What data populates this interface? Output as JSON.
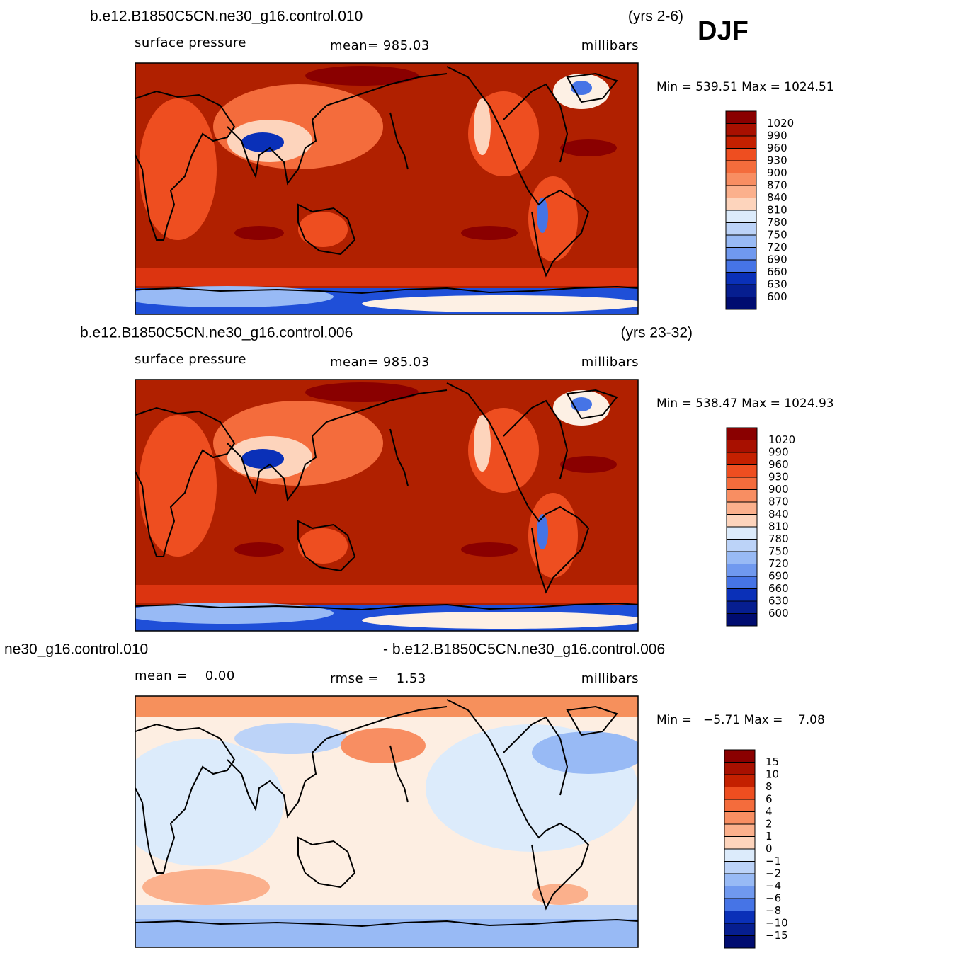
{
  "season": "DJF",
  "panels": [
    {
      "title_left": "b.e12.B1850C5CN.ne30_g16.control.010",
      "title_right": "(yrs 2-6)",
      "subtitle_left": "surface pressure",
      "subtitle_center": "mean= 985.03",
      "subtitle_right": "millibars",
      "minmax": "Min = 539.51 Max = 1024.51",
      "colorbar": {
        "labels": [
          "1020",
          "990",
          "960",
          "930",
          "900",
          "870",
          "840",
          "810",
          "780",
          "750",
          "720",
          "690",
          "660",
          "630",
          "600"
        ],
        "colors": [
          "#8a0000",
          "#a81000",
          "#c42000",
          "#dc3410",
          "#ee4e20",
          "#f46c3c",
          "#f88e62",
          "#fbb08c",
          "#fdd4bc",
          "#fdf0e4",
          "#dcebfb",
          "#bcd3f8",
          "#98baf5",
          "#7099ef",
          "#4674e6",
          "#1f4fd8",
          "#0a30b8",
          "#061e90",
          "#000c70"
        ]
      }
    },
    {
      "title_left": "b.e12.B1850C5CN.ne30_g16.control.006",
      "title_right": "(yrs 23-32)",
      "subtitle_left": "surface pressure",
      "subtitle_center": "mean= 985.03",
      "subtitle_right": "millibars",
      "minmax": "Min = 538.47 Max = 1024.93",
      "colorbar": {
        "labels": [
          "1020",
          "990",
          "960",
          "930",
          "900",
          "870",
          "840",
          "810",
          "780",
          "750",
          "720",
          "690",
          "660",
          "630",
          "600"
        ],
        "colors": [
          "#8a0000",
          "#a81000",
          "#c42000",
          "#dc3410",
          "#ee4e20",
          "#f46c3c",
          "#f88e62",
          "#fbb08c",
          "#fdd4bc",
          "#fdf0e4",
          "#dcebfb",
          "#bcd3f8",
          "#98baf5",
          "#7099ef",
          "#4674e6",
          "#1f4fd8",
          "#0a30b8",
          "#061e90",
          "#000c70"
        ]
      }
    },
    {
      "title_left": "ne30_g16.control.010",
      "title_right": "- b.e12.B1850C5CN.ne30_g16.control.006",
      "subtitle_left": "mean =    0.00",
      "subtitle_center": "rmse =    1.53",
      "subtitle_right": "millibars",
      "minmax": "Min =   −5.71 Max =    7.08",
      "colorbar": {
        "labels": [
          "15",
          "10",
          "8",
          "6",
          "4",
          "2",
          "1",
          "0",
          "−1",
          "−2",
          "−4",
          "−6",
          "−8",
          "−10",
          "−15"
        ],
        "colors": [
          "#8a0000",
          "#a81000",
          "#c42000",
          "#dc3410",
          "#ee4e20",
          "#f46c3c",
          "#f88e62",
          "#fbb08c",
          "#fdd4bc",
          "#fdf0e4",
          "#dcebfb",
          "#bcd3f8",
          "#98baf5",
          "#7099ef",
          "#4674e6",
          "#1f4fd8",
          "#0a30b8",
          "#061e90",
          "#000c70"
        ]
      }
    }
  ]
}
